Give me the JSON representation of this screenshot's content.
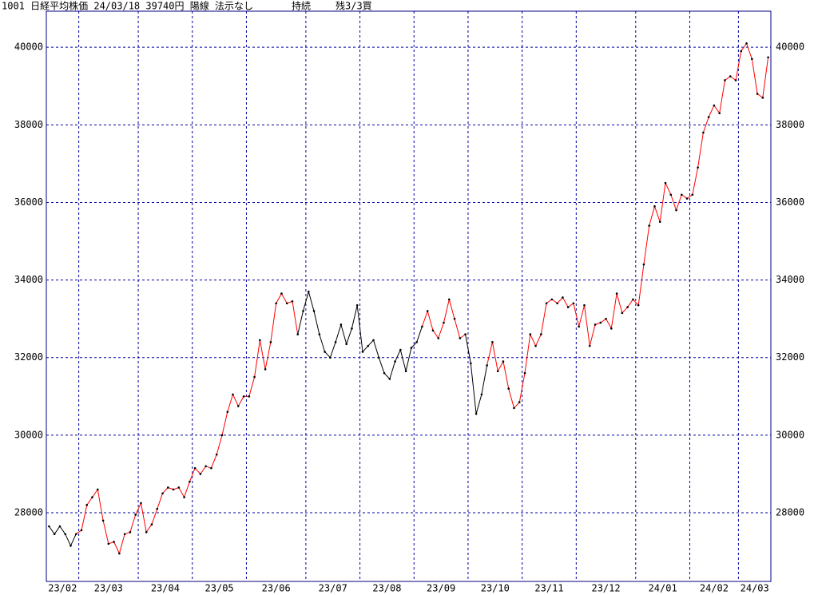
{
  "chart_data": {
    "type": "line",
    "title": "1001 日経平均株価 24/03/18 39740円 陽線 法示なし",
    "status": "持続",
    "position": "残3/3買",
    "categories": [
      "23/02",
      null,
      null,
      null,
      null,
      null,
      "23/03",
      null,
      null,
      null,
      null,
      null,
      null,
      null,
      null,
      null,
      null,
      "23/04",
      null,
      null,
      null,
      null,
      null,
      null,
      null,
      null,
      null,
      "23/05",
      null,
      null,
      null,
      null,
      null,
      null,
      null,
      null,
      null,
      "23/06",
      null,
      null,
      null,
      null,
      null,
      null,
      null,
      null,
      null,
      null,
      "23/07",
      null,
      null,
      null,
      null,
      null,
      null,
      null,
      null,
      null,
      "23/08",
      null,
      null,
      null,
      null,
      null,
      null,
      null,
      null,
      null,
      "23/09",
      null,
      null,
      null,
      null,
      null,
      null,
      null,
      null,
      null,
      "23/10",
      null,
      null,
      null,
      null,
      null,
      null,
      null,
      null,
      null,
      "23/11",
      null,
      null,
      null,
      null,
      null,
      null,
      null,
      null,
      null,
      "23/12",
      null,
      null,
      null,
      null,
      null,
      null,
      null,
      null,
      null,
      null,
      "24/01",
      null,
      null,
      null,
      null,
      null,
      null,
      null,
      null,
      null,
      "24/02",
      null,
      null,
      null,
      null,
      null,
      null,
      null,
      null,
      "24/03",
      null,
      null,
      null,
      null,
      null
    ],
    "values": [
      27650,
      27450,
      27650,
      27450,
      27150,
      27450,
      27550,
      28200,
      28400,
      28600,
      27800,
      27200,
      27250,
      26950,
      27450,
      27500,
      27950,
      28250,
      27500,
      27700,
      28100,
      28500,
      28650,
      28600,
      28650,
      28400,
      28800,
      29150,
      29000,
      29200,
      29150,
      29500,
      30000,
      30600,
      31050,
      30750,
      31000,
      31000,
      31500,
      32450,
      31700,
      32400,
      33400,
      33650,
      33400,
      33450,
      32600,
      33200,
      33700,
      33200,
      32600,
      32150,
      32000,
      32400,
      32850,
      32350,
      32750,
      33350,
      32150,
      32300,
      32450,
      32000,
      31600,
      31450,
      31900,
      32200,
      31650,
      32250,
      32400,
      32800,
      33200,
      32700,
      32500,
      32900,
      33500,
      33000,
      32500,
      32600,
      31850,
      30550,
      31050,
      31800,
      32400,
      31650,
      31900,
      31200,
      30700,
      30850,
      31600,
      32600,
      32300,
      32600,
      33400,
      33500,
      33400,
      33550,
      33300,
      33400,
      32800,
      33350,
      32300,
      32850,
      32900,
      33000,
      32750,
      33650,
      33150,
      33300,
      33500,
      33350,
      34400,
      35400,
      35900,
      35500,
      36500,
      36200,
      35800,
      36200,
      36100,
      36200,
      36900,
      37800,
      38200,
      38500,
      38300,
      39150,
      39250,
      39150,
      39900,
      40100,
      39700,
      38800,
      38700,
      39740
    ],
    "line_colors": [
      {
        "from": 0,
        "color": "#000000"
      },
      {
        "from": 6,
        "color": "#ff0000"
      },
      {
        "from": 47,
        "color": "#000000"
      },
      {
        "from": 70,
        "color": "#ff0000"
      },
      {
        "from": 78,
        "color": "#000000"
      },
      {
        "from": 82,
        "color": "#ff0000"
      }
    ],
    "marker_color": "#000000",
    "grid_color": "#0000a0",
    "ylim": [
      26230,
      40930
    ],
    "yticks": [
      28000,
      30000,
      32000,
      34000,
      36000,
      38000,
      40000
    ],
    "grid": true
  }
}
